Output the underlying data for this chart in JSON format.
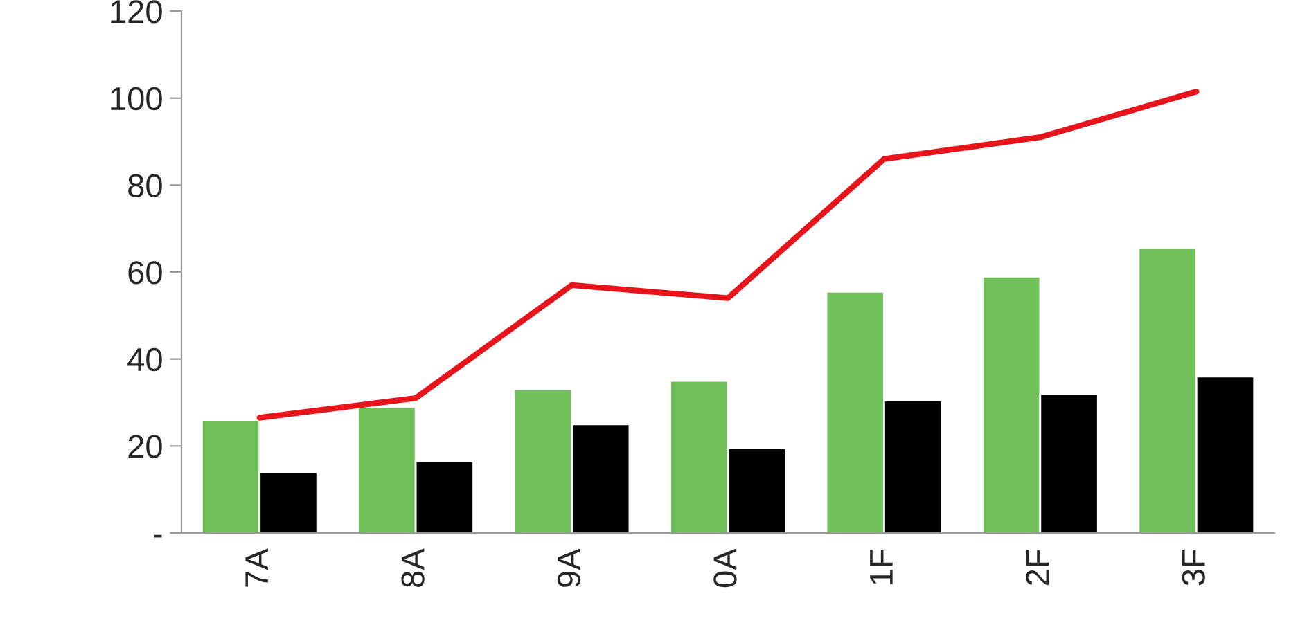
{
  "chart_data": {
    "type": "bar",
    "categories": [
      "7A",
      "8A",
      "9A",
      "0A",
      "1F",
      "2F",
      "3F"
    ],
    "series": [
      {
        "color": "#70c05a",
        "values": [
          26,
          29,
          33,
          35,
          55.5,
          59,
          65.5
        ]
      },
      {
        "color": "#000000",
        "values": [
          14,
          16.5,
          25,
          19.5,
          30.5,
          32,
          36
        ]
      },
      {
        "type": "line",
        "color": "#e8141c",
        "values": [
          26.5,
          31,
          57,
          54,
          86,
          91,
          101.5
        ]
      }
    ],
    "ylim": [
      0,
      120
    ],
    "yticks": [
      {
        "value": 0,
        "label": "-"
      },
      20,
      40,
      60,
      80,
      100,
      120
    ],
    "grid": false,
    "marker": "none",
    "line_style": "solid"
  }
}
